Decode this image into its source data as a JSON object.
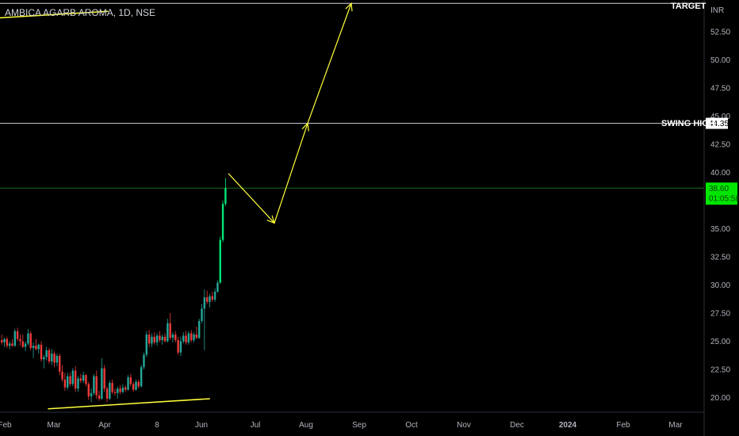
{
  "symbol_title": "AMBICA AGARB AROMA, 1D, NSE",
  "currency": "INR",
  "colors": {
    "up": "#26a69a",
    "up_bright": "#00e676",
    "down": "#ef3b3b",
    "trend": "#ffff3b",
    "level_line": "#d1d4dc",
    "price_line": "#1b6b1b",
    "price_badge": "#00e600"
  },
  "chart_data": {
    "type": "candlestick",
    "title": "AMBICA AGARB AROMA, 1D, NSE",
    "y_unit": "INR",
    "ylim": [
      18.7,
      55.3
    ],
    "y_ticks": [
      "20.00",
      "22.50",
      "25.00",
      "27.50",
      "30.00",
      "32.50",
      "35.00",
      "37.50",
      "40.00",
      "42.50",
      "45.00",
      "47.50",
      "50.00",
      "52.50"
    ],
    "x_ticks": [
      "Feb",
      "Mar",
      "Apr",
      "8",
      "Jun",
      "Jul",
      "Aug",
      "Sep",
      "Oct",
      "Nov",
      "Dec",
      "2024",
      "Feb",
      "Mar"
    ],
    "grid": false,
    "current_price": {
      "value": 38.6,
      "label": "38.60",
      "countdown": "01:05:58"
    },
    "levels": [
      {
        "name": "TARGET",
        "value": 55.0,
        "label": "TARGET"
      },
      {
        "name": "SWING HIGH",
        "value": 44.35,
        "label": "SWING HIGH",
        "value_label": "44.35"
      }
    ],
    "candles": [
      [
        25.1,
        25.6,
        24.7,
        24.9
      ],
      [
        24.9,
        25.3,
        24.5,
        25.2
      ],
      [
        25.2,
        25.4,
        24.4,
        24.6
      ],
      [
        24.6,
        25.0,
        24.3,
        24.8
      ],
      [
        24.8,
        25.2,
        24.5,
        24.6
      ],
      [
        24.6,
        26.1,
        24.5,
        25.9
      ],
      [
        25.9,
        26.2,
        25.0,
        25.2
      ],
      [
        25.2,
        25.6,
        24.6,
        25.0
      ],
      [
        25.0,
        25.6,
        24.4,
        24.5
      ],
      [
        24.5,
        25.0,
        24.1,
        24.8
      ],
      [
        24.8,
        26.1,
        24.6,
        25.7
      ],
      [
        25.7,
        25.9,
        24.2,
        24.4
      ],
      [
        24.4,
        24.9,
        23.5,
        24.6
      ],
      [
        24.6,
        25.2,
        24.2,
        24.3
      ],
      [
        24.3,
        24.8,
        23.9,
        24.7
      ],
      [
        24.7,
        25.0,
        23.2,
        23.4
      ],
      [
        23.4,
        23.8,
        22.6,
        23.6
      ],
      [
        23.6,
        24.5,
        23.3,
        24.2
      ],
      [
        24.2,
        24.4,
        23.0,
        23.2
      ],
      [
        23.2,
        24.3,
        22.9,
        23.9
      ],
      [
        23.9,
        24.1,
        22.7,
        23.1
      ],
      [
        23.1,
        23.9,
        22.8,
        23.7
      ],
      [
        23.7,
        23.9,
        22.0,
        22.3
      ],
      [
        22.3,
        22.9,
        21.4,
        21.6
      ],
      [
        21.6,
        22.2,
        20.6,
        20.9
      ],
      [
        20.9,
        22.2,
        20.7,
        21.9
      ],
      [
        21.9,
        22.2,
        21.0,
        21.2
      ],
      [
        21.2,
        22.6,
        21.0,
        22.4
      ],
      [
        22.4,
        22.8,
        20.5,
        20.8
      ],
      [
        20.8,
        21.9,
        20.5,
        21.7
      ],
      [
        21.7,
        22.1,
        21.3,
        21.5
      ],
      [
        21.5,
        22.3,
        21.3,
        22.0
      ],
      [
        22.0,
        22.1,
        21.0,
        21.2
      ],
      [
        21.2,
        21.4,
        19.8,
        20.1
      ],
      [
        20.1,
        20.8,
        19.6,
        20.4
      ],
      [
        20.4,
        22.1,
        20.2,
        21.9
      ],
      [
        21.9,
        22.4,
        19.9,
        20.2
      ],
      [
        20.2,
        20.6,
        19.7,
        19.9
      ],
      [
        19.9,
        23.5,
        19.8,
        22.6
      ],
      [
        22.6,
        22.9,
        20.5,
        20.8
      ],
      [
        20.8,
        21.0,
        19.6,
        19.9
      ],
      [
        19.9,
        21.5,
        19.8,
        21.3
      ],
      [
        21.3,
        21.6,
        20.3,
        20.5
      ],
      [
        20.5,
        20.8,
        20.2,
        20.4
      ],
      [
        20.4,
        21.0,
        19.9,
        20.8
      ],
      [
        20.8,
        21.1,
        20.3,
        20.5
      ],
      [
        20.5,
        21.2,
        20.4,
        20.9
      ],
      [
        20.9,
        21.1,
        20.5,
        20.7
      ],
      [
        20.7,
        22.0,
        20.6,
        21.8
      ],
      [
        21.8,
        22.1,
        21.0,
        21.2
      ],
      [
        21.2,
        21.4,
        20.5,
        20.7
      ],
      [
        20.7,
        21.6,
        20.6,
        21.4
      ],
      [
        21.4,
        21.6,
        20.8,
        21.0
      ],
      [
        21.0,
        22.9,
        20.9,
        22.7
      ],
      [
        22.7,
        24.0,
        22.5,
        23.8
      ],
      [
        23.8,
        25.9,
        23.6,
        25.6
      ],
      [
        25.6,
        26.0,
        24.5,
        24.8
      ],
      [
        24.8,
        25.7,
        24.5,
        25.4
      ],
      [
        25.4,
        25.8,
        24.7,
        24.9
      ],
      [
        24.9,
        25.7,
        24.6,
        25.5
      ],
      [
        25.5,
        25.9,
        24.9,
        25.1
      ],
      [
        25.1,
        25.6,
        24.7,
        25.4
      ],
      [
        25.4,
        25.7,
        24.9,
        25.0
      ],
      [
        25.0,
        27.0,
        24.9,
        26.6
      ],
      [
        26.6,
        27.5,
        25.1,
        25.3
      ],
      [
        25.3,
        25.8,
        24.9,
        25.6
      ],
      [
        25.6,
        25.9,
        24.9,
        25.1
      ],
      [
        25.1,
        25.4,
        23.8,
        24.0
      ],
      [
        24.0,
        25.4,
        23.7,
        25.0
      ],
      [
        25.0,
        25.8,
        24.8,
        25.5
      ],
      [
        25.5,
        25.9,
        24.7,
        24.9
      ],
      [
        24.9,
        25.9,
        24.7,
        25.7
      ],
      [
        25.7,
        26.0,
        24.9,
        25.1
      ],
      [
        25.1,
        25.8,
        24.9,
        25.6
      ],
      [
        25.6,
        26.3,
        25.2,
        25.3
      ],
      [
        25.3,
        27.0,
        25.2,
        26.8
      ],
      [
        26.8,
        28.3,
        26.6,
        27.9
      ],
      [
        27.9,
        29.6,
        24.2,
        28.9
      ],
      [
        28.9,
        29.5,
        28.3,
        28.5
      ],
      [
        28.5,
        29.2,
        28.0,
        29.0
      ],
      [
        29.0,
        29.4,
        28.5,
        28.7
      ],
      [
        28.7,
        29.7,
        28.5,
        29.4
      ],
      [
        29.4,
        30.4,
        29.3,
        30.2
      ],
      [
        30.2,
        34.3,
        30.1,
        34.0
      ],
      [
        34.0,
        37.5,
        33.8,
        37.2
      ],
      [
        37.2,
        39.5,
        37.0,
        38.6
      ]
    ],
    "trendlines": [
      {
        "name": "lower-trendline",
        "points": [
          [
            "2023-01-31",
            19.0
          ],
          [
            "2023-06-06",
            19.9
          ]
        ]
      },
      {
        "name": "upper-left-trendline",
        "points": [
          [
            "2022-11-08",
            52.8
          ],
          [
            "2023-04-03",
            54.3
          ]
        ]
      }
    ],
    "projection_path": [
      [
        39.9,
        35.5,
        44.35,
        55.0
      ]
    ]
  }
}
